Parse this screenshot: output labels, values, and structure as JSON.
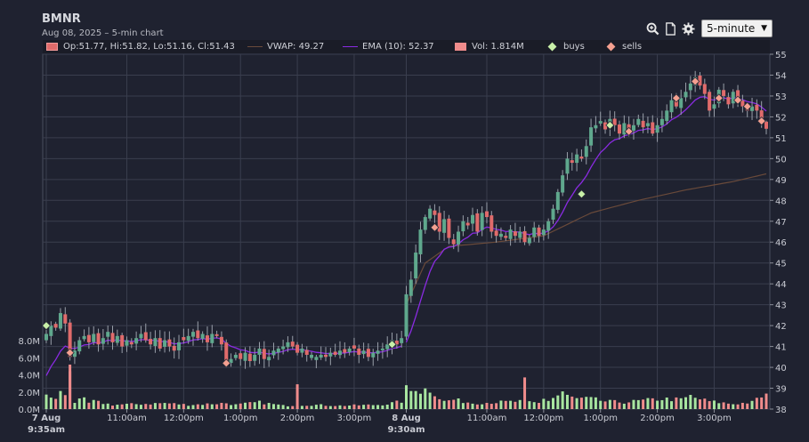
{
  "header": {
    "ticker": "BMNR",
    "subtitle": "Aug 08, 2025 – 5-min chart"
  },
  "toolbar": {
    "icons": [
      "zoom-icon",
      "document-icon",
      "gear-icon"
    ],
    "interval_value": "5-minute"
  },
  "legend": {
    "ohlc": "Op:51.77, Hi:51.82, Lo:51.16, Cl:51.43",
    "vwap": "VWAP: 49.27",
    "ema": "EMA (10): 52.37",
    "volume": "Vol: 1.814M",
    "buys": "buys",
    "sells": "sells"
  },
  "colors": {
    "background": "#1f2230",
    "grid": "#3a3e4e",
    "up": "#5fa88d",
    "down": "#e06b6b",
    "vwap": "#6a4a3a",
    "ema": "#8a2be2",
    "buy_marker": "#c8f0a8",
    "sell_marker": "#f4a090",
    "volume_up": "#a8e6a0",
    "volume_down": "#f08c8c"
  },
  "chart_data": {
    "type": "candlestick",
    "title": "BMNR",
    "price_axis": {
      "min": 38,
      "max": 55,
      "ticks": [
        38,
        39,
        40,
        41,
        42,
        43,
        44,
        45,
        46,
        47,
        48,
        49,
        50,
        51,
        52,
        53,
        54,
        55
      ]
    },
    "volume_axis": {
      "min": 0,
      "max": 8,
      "unit": "M",
      "ticks": [
        "0.0M",
        "2.0M",
        "4.0M",
        "6.0M",
        "8.0M"
      ]
    },
    "x_ticks": [
      {
        "i": 0,
        "line1": "7 Aug",
        "line2": "9:35am",
        "bold": true
      },
      {
        "i": 17,
        "line1": "11:00am",
        "line2": ""
      },
      {
        "i": 29,
        "line1": "12:00pm",
        "line2": ""
      },
      {
        "i": 41,
        "line1": "1:00pm",
        "line2": ""
      },
      {
        "i": 53,
        "line1": "2:00pm",
        "line2": ""
      },
      {
        "i": 65,
        "line1": "3:00pm",
        "line2": ""
      },
      {
        "i": 76,
        "line1": "8 Aug",
        "line2": "9:30am",
        "bold": true
      },
      {
        "i": 93,
        "line1": "11:00am",
        "line2": ""
      },
      {
        "i": 105,
        "line1": "12:00pm",
        "line2": ""
      },
      {
        "i": 117,
        "line1": "1:00pm",
        "line2": ""
      },
      {
        "i": 129,
        "line1": "2:00pm",
        "line2": ""
      },
      {
        "i": 141,
        "line1": "3:00pm",
        "line2": ""
      }
    ],
    "last_bar": {
      "open": 51.77,
      "high": 51.82,
      "low": 51.16,
      "close": 51.43,
      "volume_m": 1.814
    },
    "vwap_last": 49.27,
    "ema10_last": 52.37,
    "session_anchors": [
      [
        0,
        41.6
      ],
      [
        1,
        42.0
      ],
      [
        2,
        41.9
      ],
      [
        3,
        42.6
      ],
      [
        4,
        42.1
      ],
      [
        5,
        40.5
      ],
      [
        6,
        40.8
      ],
      [
        7,
        41.3
      ],
      [
        8,
        41.5
      ],
      [
        9,
        41.2
      ],
      [
        10,
        41.6
      ],
      [
        11,
        41.1
      ],
      [
        12,
        41.4
      ],
      [
        13,
        41.7
      ],
      [
        14,
        41.2
      ],
      [
        15,
        41.5
      ],
      [
        16,
        41.0
      ],
      [
        17,
        41.3
      ],
      [
        18,
        41.1
      ],
      [
        19,
        41.4
      ],
      [
        20,
        41.6
      ],
      [
        21,
        41.3
      ],
      [
        22,
        41.1
      ],
      [
        23,
        41.4
      ],
      [
        24,
        40.9
      ],
      [
        25,
        41.3
      ],
      [
        26,
        41.0
      ],
      [
        27,
        40.8
      ],
      [
        28,
        41.2
      ],
      [
        29,
        41.3
      ],
      [
        30,
        41.5
      ],
      [
        31,
        41.7
      ],
      [
        32,
        41.4
      ],
      [
        33,
        41.6
      ],
      [
        34,
        41.2
      ],
      [
        35,
        41.6
      ],
      [
        36,
        41.5
      ],
      [
        37,
        41.1
      ],
      [
        38,
        40.2
      ],
      [
        39,
        40.4
      ],
      [
        40,
        40.6
      ],
      [
        41,
        40.4
      ],
      [
        42,
        40.7
      ],
      [
        43,
        40.3
      ],
      [
        44,
        40.6
      ],
      [
        45,
        40.9
      ],
      [
        46,
        40.4
      ],
      [
        47,
        40.5
      ],
      [
        48,
        40.8
      ],
      [
        49,
        40.9
      ],
      [
        50,
        41.0
      ],
      [
        51,
        41.2
      ],
      [
        52,
        41.0
      ],
      [
        53,
        40.7
      ],
      [
        54,
        40.9
      ],
      [
        55,
        40.6
      ],
      [
        56,
        40.6
      ],
      [
        57,
        40.5
      ],
      [
        58,
        40.6
      ],
      [
        59,
        40.5
      ],
      [
        60,
        40.7
      ],
      [
        61,
        40.6
      ],
      [
        62,
        40.8
      ],
      [
        63,
        40.7
      ],
      [
        64,
        40.9
      ],
      [
        65,
        40.9
      ],
      [
        66,
        40.6
      ],
      [
        67,
        40.8
      ],
      [
        68,
        40.5
      ],
      [
        69,
        40.7
      ],
      [
        70,
        40.8
      ],
      [
        71,
        40.9
      ],
      [
        72,
        41.1
      ],
      [
        73,
        41.3
      ],
      [
        74,
        41.1
      ],
      [
        75,
        41.4
      ],
      [
        76,
        43.5
      ],
      [
        77,
        44.2
      ],
      [
        78,
        45.5
      ],
      [
        79,
        46.6
      ],
      [
        80,
        47.2
      ],
      [
        81,
        47.6
      ],
      [
        82,
        47.3
      ],
      [
        83,
        46.5
      ],
      [
        84,
        47.1
      ],
      [
        85,
        46.2
      ],
      [
        86,
        45.9
      ],
      [
        87,
        46.5
      ],
      [
        88,
        47.0
      ],
      [
        89,
        46.8
      ],
      [
        90,
        47.3
      ],
      [
        91,
        46.5
      ],
      [
        92,
        47.4
      ],
      [
        93,
        47.2
      ],
      [
        94,
        46.5
      ],
      [
        95,
        46.3
      ],
      [
        96,
        46.4
      ],
      [
        97,
        46.2
      ],
      [
        98,
        46.6
      ],
      [
        99,
        46.3
      ],
      [
        100,
        46.5
      ],
      [
        101,
        46.0
      ],
      [
        102,
        46.2
      ],
      [
        103,
        46.7
      ],
      [
        104,
        46.3
      ],
      [
        105,
        46.6
      ],
      [
        106,
        47.0
      ],
      [
        107,
        47.6
      ],
      [
        108,
        48.4
      ],
      [
        109,
        49.2
      ],
      [
        110,
        50.0
      ],
      [
        111,
        49.8
      ],
      [
        112,
        50.2
      ],
      [
        113,
        50.0
      ],
      [
        114,
        50.6
      ],
      [
        115,
        51.5
      ],
      [
        116,
        51.6
      ],
      [
        117,
        51.8
      ],
      [
        118,
        51.4
      ],
      [
        119,
        51.9
      ],
      [
        120,
        51.6
      ],
      [
        121,
        51.2
      ],
      [
        122,
        51.7
      ],
      [
        123,
        51.4
      ],
      [
        124,
        51.6
      ],
      [
        125,
        51.9
      ],
      [
        126,
        51.5
      ],
      [
        127,
        51.7
      ],
      [
        128,
        51.2
      ],
      [
        129,
        51.6
      ],
      [
        130,
        51.9
      ],
      [
        131,
        52.3
      ],
      [
        132,
        52.8
      ],
      [
        133,
        52.5
      ],
      [
        134,
        52.9
      ],
      [
        135,
        53.2
      ],
      [
        136,
        53.6
      ],
      [
        137,
        53.9
      ],
      [
        138,
        53.5
      ],
      [
        139,
        53.1
      ],
      [
        140,
        52.3
      ],
      [
        141,
        52.6
      ],
      [
        142,
        53.3
      ],
      [
        143,
        53.0
      ],
      [
        144,
        52.6
      ],
      [
        145,
        53.2
      ],
      [
        146,
        52.8
      ],
      [
        147,
        52.5
      ],
      [
        148,
        52.3
      ],
      [
        149,
        52.5
      ],
      [
        150,
        52.3
      ],
      [
        151,
        51.8
      ],
      [
        152,
        51.43
      ]
    ],
    "vwap_anchors": [
      [
        76,
        43.0
      ],
      [
        80,
        45.0
      ],
      [
        85,
        45.8
      ],
      [
        95,
        46.0
      ],
      [
        105,
        46.3
      ],
      [
        115,
        47.4
      ],
      [
        125,
        48.0
      ],
      [
        135,
        48.5
      ],
      [
        145,
        48.9
      ],
      [
        152,
        49.27
      ]
    ],
    "volume_anchors": [
      [
        0,
        1.6
      ],
      [
        1,
        1.2
      ],
      [
        2,
        1.3
      ],
      [
        3,
        1.9
      ],
      [
        4,
        1.7
      ],
      [
        5,
        5.2
      ],
      [
        6,
        0.8
      ],
      [
        7,
        1.0
      ],
      [
        8,
        1.1
      ],
      [
        9,
        0.7
      ],
      [
        10,
        0.9
      ],
      [
        14,
        0.5
      ],
      [
        20,
        0.6
      ],
      [
        25,
        0.7
      ],
      [
        30,
        0.5
      ],
      [
        38,
        0.7
      ],
      [
        40,
        0.5
      ],
      [
        45,
        0.8
      ],
      [
        50,
        0.4
      ],
      [
        56,
        0.5
      ],
      [
        62,
        0.4
      ],
      [
        70,
        0.5
      ],
      [
        72,
        0.6
      ],
      [
        75,
        0.9
      ],
      [
        76,
        2.3
      ],
      [
        77,
        2.1
      ],
      [
        78,
        2.6
      ],
      [
        79,
        2.1
      ],
      [
        80,
        2.3
      ],
      [
        81,
        2.3
      ],
      [
        82,
        1.9
      ],
      [
        83,
        1.3
      ],
      [
        84,
        0.9
      ],
      [
        86,
        1.1
      ],
      [
        90,
        0.7
      ],
      [
        95,
        0.8
      ],
      [
        100,
        0.9
      ],
      [
        104,
        0.7
      ],
      [
        105,
        1.3
      ],
      [
        106,
        1.0
      ],
      [
        108,
        1.6
      ],
      [
        109,
        2.0
      ],
      [
        110,
        1.5
      ],
      [
        112,
        1.2
      ],
      [
        115,
        1.2
      ],
      [
        118,
        0.9
      ],
      [
        122,
        0.8
      ],
      [
        126,
        1.0
      ],
      [
        130,
        1.2
      ],
      [
        134,
        1.1
      ],
      [
        136,
        1.5
      ],
      [
        137,
        1.3
      ],
      [
        140,
        0.9
      ],
      [
        145,
        0.6
      ],
      [
        149,
        0.8
      ],
      [
        152,
        1.814
      ]
    ],
    "big_volume_bars": [
      [
        5,
        5.2
      ],
      [
        53,
        2.9
      ],
      [
        101,
        3.7
      ]
    ],
    "buys": [
      [
        0,
        42.0
      ],
      [
        73,
        41.1
      ],
      [
        113,
        48.3
      ],
      [
        119,
        51.6
      ]
    ],
    "sells": [
      [
        5,
        40.7
      ],
      [
        38,
        40.2
      ],
      [
        82,
        46.7
      ],
      [
        123,
        51.3
      ],
      [
        133,
        52.9
      ],
      [
        137,
        53.7
      ],
      [
        142,
        52.9
      ],
      [
        146,
        52.8
      ],
      [
        148,
        52.5
      ],
      [
        151,
        51.8
      ]
    ]
  }
}
